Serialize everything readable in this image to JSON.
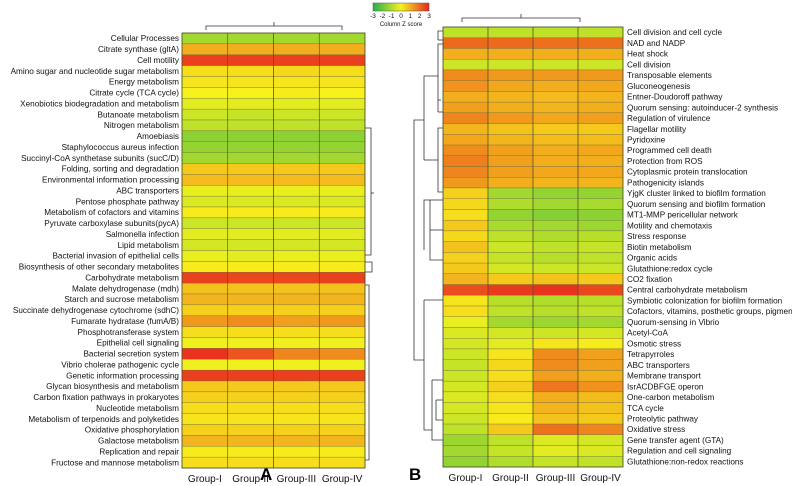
{
  "chart_data": [
    {
      "type": "heatmap",
      "panel": "A",
      "columns": [
        "Group-I",
        "Group-II",
        "Group-III",
        "Group-IV"
      ],
      "rows": [
        "Cellular Processes",
        "Citrate synthase (gltA)",
        "Cell motility",
        "Amino sugar and nucleotide sugar metabolism",
        "Energy metabolism",
        "Citrate cycle (TCA cycle)",
        "Xenobiotics biodegradation and metabolism",
        "Butanoate metabolism",
        "Nitrogen metabolism",
        "Amoebiasis",
        "Staphylococcus aureus infection",
        "Succinyl-CoA synthetase subunits (sucC/D)",
        "Folding, sorting and degradation",
        "Environmental information processing",
        "ABC transporters",
        "Pentose phosphate pathway",
        "Metabolism of cofactors and vitamins",
        "Pyruvate carboxylase subunits(pycA)",
        "Salmonella infection",
        "Lipid metabolism",
        "Bacterial invasion of epithelial cells",
        "Biosynthesis of other secondary metabolites",
        "Carbohydrate metabolism",
        "Malate dehydrogenase (mdh)",
        "Starch and sucrose metabolism",
        "Succinate dehydrogenase cytochrome (sdhC)",
        "Fumarate hydratase (fumA/B)",
        "Phosphotransferase system",
        "Epithelial cell signaling",
        "Bacterial secretion system",
        "Vibrio cholerae pathogenic cycle",
        "Genetic information processing",
        "Glycan biosynthesis and metabolism",
        "Carbon fixation pathways in prokaryotes",
        "Nucleotide metabolism",
        "Metabolism of terpenoids and polyketides",
        "Oxidative phosphorylation",
        "Galactose metabolism",
        "Replication and repair",
        "Fructose and mannose metabolism"
      ],
      "values": [
        [
          -1.2,
          -1.2,
          -1.2,
          -1.2
        ],
        [
          1.0,
          1.0,
          1.0,
          1.0
        ],
        [
          2.6,
          2.6,
          2.6,
          2.6
        ],
        [
          0.3,
          0.3,
          0.4,
          0.3
        ],
        [
          0.2,
          0.2,
          0.2,
          0.2
        ],
        [
          0.0,
          0.0,
          0.1,
          0.0
        ],
        [
          -0.3,
          -0.3,
          -0.3,
          -0.3
        ],
        [
          -0.6,
          -0.7,
          -0.6,
          -0.6
        ],
        [
          -0.8,
          -0.8,
          -0.8,
          -0.8
        ],
        [
          -1.5,
          -1.5,
          -1.5,
          -1.5
        ],
        [
          -1.4,
          -1.4,
          -1.4,
          -1.4
        ],
        [
          -1.2,
          -1.2,
          -1.2,
          -1.2
        ],
        [
          0.6,
          0.6,
          0.6,
          0.6
        ],
        [
          0.8,
          0.8,
          0.8,
          0.8
        ],
        [
          -0.2,
          -0.2,
          -0.2,
          -0.2
        ],
        [
          -0.4,
          -0.4,
          -0.4,
          -0.4
        ],
        [
          0.1,
          0.1,
          0.1,
          0.1
        ],
        [
          -0.6,
          -0.6,
          -0.6,
          -0.6
        ],
        [
          -0.3,
          -0.3,
          -0.3,
          -0.3
        ],
        [
          -0.5,
          -0.5,
          -0.5,
          -0.5
        ],
        [
          -0.2,
          -0.3,
          -0.2,
          -0.2
        ],
        [
          0.1,
          0.1,
          0.1,
          0.1
        ],
        [
          2.6,
          2.5,
          2.5,
          2.6
        ],
        [
          0.7,
          0.7,
          0.7,
          0.7
        ],
        [
          0.9,
          0.9,
          0.9,
          0.9
        ],
        [
          0.5,
          0.5,
          0.5,
          0.5
        ],
        [
          1.3,
          1.5,
          1.2,
          1.3
        ],
        [
          0.3,
          0.3,
          0.3,
          0.3
        ],
        [
          -0.1,
          -0.1,
          -0.1,
          -0.1
        ],
        [
          2.8,
          2.3,
          1.6,
          1.5
        ],
        [
          -0.1,
          -0.1,
          -0.1,
          -0.1
        ],
        [
          2.6,
          2.6,
          2.6,
          2.6
        ],
        [
          0.6,
          0.6,
          0.6,
          0.6
        ],
        [
          0.5,
          0.5,
          0.5,
          0.5
        ],
        [
          0.3,
          0.3,
          0.3,
          0.3
        ],
        [
          0.2,
          0.2,
          0.2,
          0.2
        ],
        [
          0.5,
          0.5,
          0.5,
          0.5
        ],
        [
          0.9,
          0.9,
          0.9,
          0.9
        ],
        [
          0.1,
          0.1,
          0.1,
          0.1
        ],
        [
          0.3,
          0.3,
          0.3,
          0.3
        ]
      ]
    },
    {
      "type": "heatmap",
      "panel": "B",
      "columns": [
        "Group-I",
        "Group-II",
        "Group-III",
        "Group-IV"
      ],
      "rows": [
        "Cell division and cell cycle",
        "NAD and NADP",
        "Heat shock",
        "Cell division",
        "Transposable elements",
        "Gluconeogenesis",
        "Entner-Doudoroff pathway",
        "Quorum sensing: autoinducer-2 synthesis",
        "Regulation of virulence",
        "Flagellar motility",
        "Pyridoxine",
        "Programmed cell death",
        "Protection from ROS",
        "Cytoplasmic protein translocation",
        "Pathogenicity islands",
        "YjgK cluster linked to biofilm formation",
        "Quorum sensing and biofilm formation",
        "MT1-MMP pericellular network",
        "Motility and chemotaxis",
        "Stress response",
        "Biotin metabolism",
        "Organic acids",
        "Glutathione:redox cycle",
        "CO2 fixation",
        "Central carbohydrate metabolism",
        "Symbiotic colonization for biofilm formation",
        "Cofactors, vitamins, posthetic groups, pigments",
        "Quorum-sensing in Vibrio",
        "Acetyl-CoA",
        "Osmotic stress",
        "Tetrapyrroles",
        "ABC transporters",
        "Membrane transport",
        "IsrACDBFGE operon",
        "One-carbon metabolism",
        "TCA cycle",
        "Proteolytic pathway",
        "Oxidative stress",
        "Gene transfer agent (GTA)",
        "Regulation and cell signaling",
        "Glutathione:non-redox reactions"
      ],
      "values": [
        [
          -0.8,
          -0.8,
          -0.8,
          -0.8
        ],
        [
          2.0,
          2.0,
          1.9,
          1.9
        ],
        [
          1.0,
          1.0,
          1.0,
          1.0
        ],
        [
          -0.6,
          -0.6,
          -0.6,
          -0.6
        ],
        [
          1.5,
          1.3,
          1.3,
          1.3
        ],
        [
          1.4,
          1.1,
          1.0,
          1.1
        ],
        [
          1.0,
          0.9,
          0.8,
          0.9
        ],
        [
          1.2,
          1.0,
          0.9,
          1.0
        ],
        [
          1.6,
          1.3,
          1.1,
          1.2
        ],
        [
          0.9,
          0.7,
          0.6,
          0.6
        ],
        [
          1.1,
          0.9,
          0.8,
          0.8
        ],
        [
          1.5,
          1.2,
          1.0,
          1.1
        ],
        [
          1.7,
          1.2,
          1.0,
          1.0
        ],
        [
          1.6,
          1.2,
          1.1,
          1.1
        ],
        [
          1.3,
          1.0,
          0.9,
          0.9
        ],
        [
          0.5,
          -1.2,
          -1.4,
          -1.4
        ],
        [
          0.4,
          -1.0,
          -1.2,
          -1.1
        ],
        [
          0.3,
          -1.4,
          -1.6,
          -1.5
        ],
        [
          0.6,
          -1.1,
          -1.2,
          -1.3
        ],
        [
          0.4,
          -0.8,
          -1.0,
          -0.9
        ],
        [
          0.7,
          -0.6,
          -0.8,
          -0.7
        ],
        [
          0.5,
          -0.7,
          -0.9,
          -0.8
        ],
        [
          0.6,
          -0.5,
          -0.6,
          -0.6
        ],
        [
          0.9,
          0.6,
          0.7,
          0.6
        ],
        [
          2.4,
          2.7,
          2.8,
          2.5
        ],
        [
          0.2,
          -0.9,
          -1.0,
          -0.9
        ],
        [
          0.3,
          -0.8,
          -0.9,
          -0.8
        ],
        [
          -0.2,
          -1.2,
          -1.3,
          -1.2
        ],
        [
          -0.4,
          -0.5,
          -0.6,
          -0.5
        ],
        [
          -0.5,
          -0.3,
          0.2,
          0.1
        ],
        [
          -0.6,
          0.2,
          1.5,
          1.2
        ],
        [
          -0.7,
          0.4,
          1.5,
          1.2
        ],
        [
          -0.6,
          0.3,
          1.2,
          1.0
        ],
        [
          -0.5,
          0.5,
          1.8,
          1.4
        ],
        [
          -0.4,
          0.3,
          1.0,
          0.8
        ],
        [
          -0.5,
          0.2,
          0.9,
          0.7
        ],
        [
          -0.6,
          0.1,
          0.7,
          0.6
        ],
        [
          -0.8,
          0.6,
          1.9,
          1.6
        ],
        [
          -1.3,
          -0.8,
          -0.4,
          -0.5
        ],
        [
          -1.2,
          -0.7,
          -0.3,
          -0.4
        ],
        [
          -1.4,
          -1.0,
          -0.7,
          -0.8
        ]
      ]
    }
  ],
  "legend": {
    "title": "Column Z score",
    "ticks": [
      "-3",
      "-2",
      "-1",
      "0",
      "1",
      "2",
      "3"
    ],
    "range": [
      -3,
      3
    ]
  },
  "panel_letters": {
    "a": "A",
    "b": "B"
  }
}
